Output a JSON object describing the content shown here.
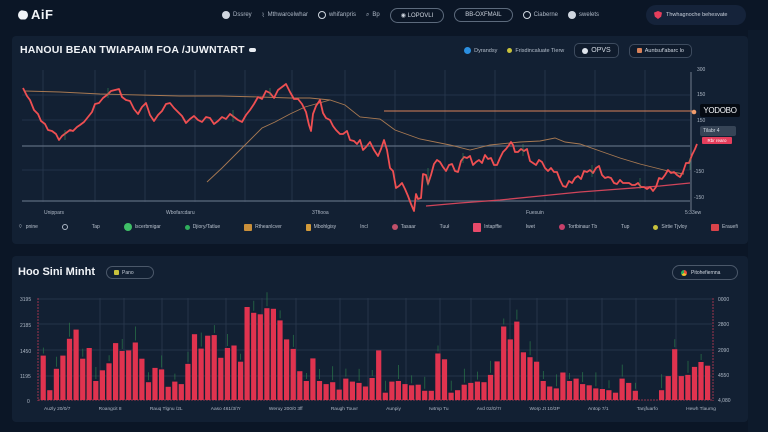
{
  "app": {
    "logo_text": "AiF"
  },
  "nav": {
    "items": [
      {
        "icon": "briefcase-icon",
        "label": "Dssrey"
      },
      {
        "icon": "chart-icon",
        "label": "Mthwarcelwhar"
      },
      {
        "icon": "globe-icon",
        "label": "whifanpris"
      },
      {
        "icon": "search-icon",
        "label": "Bp"
      }
    ],
    "pill_1": "◉ LOPOVLI",
    "pill_2": "BB-OXFMAIL",
    "extra_items": [
      {
        "icon": "settings-icon",
        "label": "Ciaberne"
      },
      {
        "icon": "user-icon",
        "label": "swelets"
      }
    ],
    "alert_label": "Thwhagnoche behesvate"
  },
  "top_panel": {
    "title": "HANOUI BEAN TWIAPAIM FOA /JUWNTART",
    "controls": {
      "legend_1": {
        "label": "Dyrandsy",
        "color": "#2b8fe0"
      },
      "legend_2": {
        "label": "Frisdincaluate Tierw",
        "color": "#c8c23c"
      },
      "button_1": "OPVS",
      "button_2": "Auntsuf'abarc lo"
    },
    "y_axis": [
      "300",
      "150",
      "150",
      "-100",
      "-150",
      "-150"
    ],
    "x_axis": [
      "Unippars",
      "Wbofarcdaru",
      "3Tfiooa",
      "Fuesuin",
      "5:33ew"
    ],
    "price_tag": "YODOBO",
    "price_sub": "Tilabr 4",
    "price_red": "Rbr rearo",
    "indicators": [
      {
        "label": "pnine",
        "icon": "wifi-icon"
      },
      {
        "label": "",
        "icon": "circle-icon"
      },
      {
        "label": "Tap",
        "icon": ""
      },
      {
        "label": "Iscerbmigar",
        "icon": "whatsapp-icon",
        "color": "#3fbf67"
      },
      {
        "label": "Djiory/Tatlue",
        "icon": "dot-icon",
        "color": "#2fae5c"
      },
      {
        "label": "Rtheanlcver",
        "icon": "flag-icon",
        "color": "#c98f3a"
      },
      {
        "label": "Mbohlgisy",
        "icon": "square-icon",
        "color": "#d29a3a"
      },
      {
        "label": "Incl",
        "icon": ""
      },
      {
        "label": "Tasaar",
        "icon": "pin-icon",
        "color": "#c0506a"
      },
      {
        "label": "Tuuł",
        "icon": ""
      },
      {
        "label": "Intapffie",
        "icon": "app-icon",
        "color": "#e84a6a"
      },
      {
        "label": "Iwet",
        "icon": ""
      },
      {
        "label": "Tortbinaur Tb",
        "icon": "pin-icon",
        "color": "#c8406a"
      },
      {
        "label": "Tup",
        "icon": ""
      },
      {
        "label": "Sirtie Tjvloy",
        "icon": "dot-icon",
        "color": "#c8c23c"
      },
      {
        "label": "Erauefi",
        "icon": "box-icon",
        "color": "#d9434a"
      }
    ]
  },
  "bottom_panel": {
    "title": "Hoo Sini Minht",
    "tag": "Pano",
    "right_button": "Pitohefiernna",
    "y_axis_left": [
      "3195",
      "2185",
      "1450",
      "1195",
      "0"
    ],
    "y_axis_right": [
      "0000",
      "2800",
      "2090",
      "4550",
      "4,080"
    ],
    "x_labels": [
      "Auzly 20/0/7",
      "Roangcit 8",
      "Rauq Tlgnu /2L",
      "Aaso 461/3/7r",
      "Weruy 200/0 3ff",
      "Raugh Touvr",
      "Aunpiy",
      "Iwtmp Tu",
      "Avd 02/0/7r",
      "Worp Jt 10/3P",
      "Antop 7/1",
      "Tanjfuarfo",
      "Hewh Tlaurng"
    ]
  },
  "chart_data": [
    {
      "type": "line",
      "title": "HANOUI BEAN TWIAPAIM FOA /JUWNTART",
      "xlabel": "",
      "ylabel": "",
      "x_ticks": [
        "Unippars",
        "Wbofarcdaru",
        "3Tfiooa",
        "Fuesuin",
        "5:33ew"
      ],
      "y_ticks": [
        "300",
        "150",
        "150",
        "-100",
        "-150",
        "-150"
      ],
      "grid": true,
      "series": [
        {
          "name": "price",
          "color": "#ef4f52",
          "values": [
            88,
            100,
            110,
            122,
            130,
            134,
            128,
            120,
            115,
            110,
            108,
            112,
            106,
            112,
            115,
            108,
            110,
            112,
            118,
            124,
            128,
            112,
            102,
            98,
            90,
            84,
            70,
            60,
            52,
            40,
            20,
            10,
            30,
            58,
            64,
            60,
            62,
            56,
            66,
            70,
            84,
            72,
            62,
            56,
            58,
            54,
            48,
            42,
            50,
            52,
            44,
            40,
            48,
            58,
            62,
            56,
            52,
            46,
            38,
            44,
            52,
            58,
            60,
            54,
            48,
            50,
            62,
            80,
            96
          ]
        },
        {
          "name": "ma_long",
          "color": "#b8845a",
          "values": [
            130,
            129,
            128,
            128,
            127,
            127,
            126,
            126,
            125,
            125,
            124,
            122,
            118,
            112,
            104,
            98,
            94,
            90,
            88,
            84,
            80,
            78,
            76,
            76,
            78,
            80,
            80,
            82,
            80,
            78,
            76,
            74,
            72,
            72,
            72,
            70,
            68,
            66,
            62,
            58,
            56
          ]
        },
        {
          "name": "ma_rising",
          "color": "#b8845a",
          "values": [
            -20,
            0,
            20,
            40,
            60,
            80,
            100,
            110
          ]
        },
        {
          "name": "support",
          "color": "#e0525d",
          "values": [
            10,
            14,
            18,
            22,
            26,
            30,
            34,
            38,
            42,
            46
          ]
        },
        {
          "name": "resistance",
          "color": "#d9825a",
          "values": [
            112,
            112,
            112,
            112,
            112,
            112,
            112,
            112
          ]
        }
      ]
    },
    {
      "type": "bar",
      "title": "Hoo Sini Minht",
      "xlabel": "",
      "ylabel": "",
      "y_ticks_left": [
        "3195",
        "2185",
        "1450",
        "1195",
        "0"
      ],
      "y_ticks_right": [
        "0000",
        "2800",
        "2090",
        "4550",
        "4,080"
      ],
      "grid": true,
      "series": [
        {
          "name": "volume",
          "color": "#e0334f",
          "values": [
            1450,
            320,
            1020,
            1450,
            2000,
            2300,
            1350,
            1700,
            620,
            970,
            1200,
            1860,
            1600,
            1620,
            1880,
            1350,
            580,
            1050,
            1000,
            430,
            600,
            520,
            1180,
            2150,
            1680,
            2100,
            2120,
            1380,
            1700,
            1780,
            1250,
            3040,
            2850,
            2800,
            3000,
            2980,
            2600,
            1980,
            1670,
            940,
            620,
            1360,
            620,
            520,
            580,
            340,
            700,
            600,
            560,
            440,
            720,
            1620,
            240,
            600,
            620,
            520,
            480,
            500,
            300,
            300,
            1520,
            1330,
            240,
            320,
            500,
            560,
            600,
            580,
            820,
            1260,
            2400,
            1980,
            2560,
            1560,
            1400,
            1250,
            620,
            440,
            380,
            900,
            620,
            700,
            520,
            480,
            380,
            360,
            320,
            240,
            700,
            560,
            300,
            0,
            0,
            0,
            320,
            780,
            1660,
            780,
            820,
            1080,
            1240,
            1120
          ]
        }
      ]
    }
  ]
}
